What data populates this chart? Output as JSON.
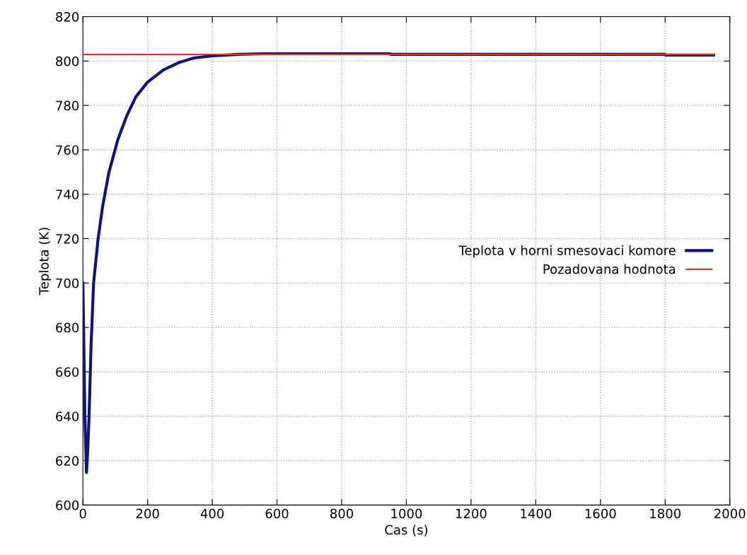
{
  "chart_data": {
    "type": "line",
    "xlabel": "Cas (s)",
    "ylabel": "Teplota (K)",
    "xlim": [
      0,
      2000
    ],
    "ylim": [
      600,
      820
    ],
    "xticks": [
      0,
      200,
      400,
      600,
      800,
      1000,
      1200,
      1400,
      1600,
      1800,
      2000
    ],
    "yticks": [
      600,
      620,
      640,
      660,
      680,
      700,
      720,
      740,
      760,
      780,
      800,
      820
    ],
    "grid": true,
    "legend": "right",
    "series": [
      {
        "name": "Teplota v horni smesovaci komore",
        "color": "#0a1580",
        "x": [
          0,
          2,
          6,
          11,
          15,
          19,
          25,
          33,
          47,
          61,
          80,
          108,
          136,
          164,
          200,
          249,
          296,
          343,
          402,
          484,
          560,
          950,
          951,
          1800,
          1801,
          1950
        ],
        "values": [
          700,
          680,
          640,
          614.6,
          625,
          640,
          671,
          700,
          720,
          734.6,
          749.6,
          764.6,
          775.5,
          784,
          790.5,
          796,
          799.3,
          801.4,
          802.4,
          803,
          803.3,
          803.3,
          803,
          803,
          802.7,
          802.7
        ]
      },
      {
        "name": "Pozadovana hodnota",
        "color": "#e0302a",
        "x": [
          0,
          1950
        ],
        "values": [
          803,
          803
        ]
      }
    ]
  }
}
